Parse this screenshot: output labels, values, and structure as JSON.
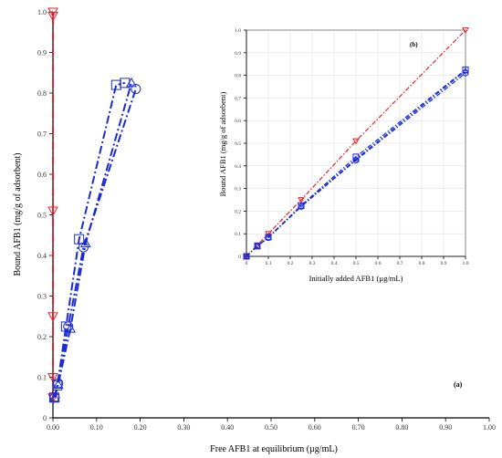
{
  "colors": {
    "red": "#e8202a",
    "blue": "#1a2bd6",
    "axis": "#000000",
    "inset_grid": "#d8d8d8"
  },
  "chart_data": [
    {
      "panel": "(a)",
      "type": "line",
      "xlabel": "Free AFB1 at equilibrium (µg/mL)",
      "ylabel": "Bound AFB1 (mg/g of adsorbent)",
      "xlim": [
        0,
        1.0
      ],
      "ylim": [
        0,
        1.0
      ],
      "x_ticks": [
        "0.00",
        "0.10",
        "0.20",
        "0.30",
        "0.40",
        "0.50",
        "0.60",
        "0.70",
        "0.80",
        "0.90",
        "1.00"
      ],
      "y_ticks": [
        "0",
        "0.1",
        "0.2",
        "0.3",
        "0.4",
        "0.5",
        "0.6",
        "0.7",
        "0.8",
        "0.9",
        "1.0"
      ],
      "grid": false,
      "series": [
        {
          "color": "#e8202a",
          "marker": "triangle-down",
          "line": "dash-dot",
          "x": [
            0.0,
            0.0,
            0.0,
            0.0,
            0.0,
            0.0
          ],
          "y": [
            0.05,
            0.1,
            0.25,
            0.51,
            0.99,
            1.0
          ]
        },
        {
          "color": "#1a2bd6",
          "marker": "square",
          "line": "dash-dot",
          "x": [
            0.003,
            0.01,
            0.03,
            0.06,
            0.145,
            0.165
          ],
          "y": [
            0.05,
            0.08,
            0.225,
            0.44,
            0.82,
            0.825
          ]
        },
        {
          "color": "#1a2bd6",
          "marker": "circle",
          "line": "dash-dot",
          "x": [
            0.004,
            0.012,
            0.035,
            0.07,
            0.19
          ],
          "y": [
            0.05,
            0.085,
            0.225,
            0.42,
            0.81
          ]
        },
        {
          "color": "#1a2bd6",
          "marker": "triangle-up",
          "line": "dash-dot",
          "x": [
            0.004,
            0.012,
            0.04,
            0.075,
            0.18
          ],
          "y": [
            0.05,
            0.082,
            0.22,
            0.43,
            0.825
          ]
        }
      ],
      "annotations": [
        "(a)"
      ]
    },
    {
      "panel": "(b)",
      "type": "line",
      "xlabel": "Initially added AFB1 (µg/mL)",
      "ylabel": "Bound AFB1 (mg/g of adsorbent)",
      "xlim": [
        0,
        1.0
      ],
      "ylim": [
        0,
        1.0
      ],
      "x_ticks": [
        "0",
        "0.1",
        "0.2",
        "0.3",
        "0.4",
        "0.5",
        "0.6",
        "0.7",
        "0.8",
        "0.9",
        "1.0"
      ],
      "y_ticks": [
        "0",
        "0.1",
        "0.2",
        "0.3",
        "0.4",
        "0.5",
        "0.6",
        "0.7",
        "0.8",
        "0.9",
        "1.0"
      ],
      "grid": true,
      "series": [
        {
          "color": "#e8202a",
          "marker": "triangle-down",
          "line": "dash-dot",
          "x": [
            0,
            0.05,
            0.1,
            0.25,
            0.5,
            1.0
          ],
          "y": [
            0,
            0.05,
            0.1,
            0.25,
            0.51,
            1.0
          ]
        },
        {
          "color": "#1a2bd6",
          "marker": "square",
          "line": "dash-dot",
          "x": [
            0,
            0.05,
            0.1,
            0.25,
            0.5,
            1.0
          ],
          "y": [
            0,
            0.045,
            0.085,
            0.225,
            0.44,
            0.825
          ]
        },
        {
          "color": "#1a2bd6",
          "marker": "circle",
          "line": "dash-dot",
          "x": [
            0,
            0.05,
            0.1,
            0.25,
            0.5,
            1.0
          ],
          "y": [
            0,
            0.045,
            0.082,
            0.22,
            0.425,
            0.81
          ]
        },
        {
          "color": "#1a2bd6",
          "marker": "triangle-up",
          "line": "dash-dot",
          "x": [
            0,
            0.05,
            0.1,
            0.25,
            0.5,
            1.0
          ],
          "y": [
            0,
            0.047,
            0.084,
            0.222,
            0.43,
            0.82
          ]
        }
      ],
      "annotations": [
        "(b)"
      ]
    }
  ]
}
